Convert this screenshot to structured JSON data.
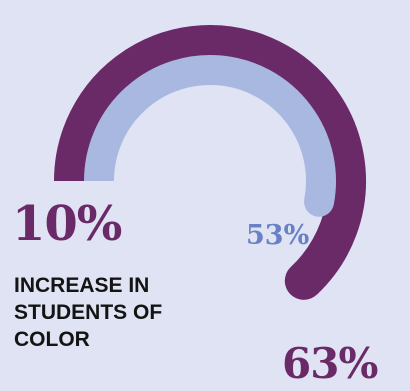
{
  "headline": {
    "value": "10%",
    "caption": "INCREASE IN STUDENTS OF COLOR"
  },
  "colors": {
    "background": "#dfe3f3",
    "outer_ring": "#6a2a68",
    "inner_ring": "#a9b8e0",
    "inner_label": "#6880c4"
  },
  "chart_data": {
    "type": "radial-bar",
    "title": "",
    "series": [
      {
        "value": 63,
        "label": "63%",
        "color": "#6a2a68"
      },
      {
        "value": 53,
        "label": "53%",
        "color": "#a9b8e0"
      }
    ]
  }
}
